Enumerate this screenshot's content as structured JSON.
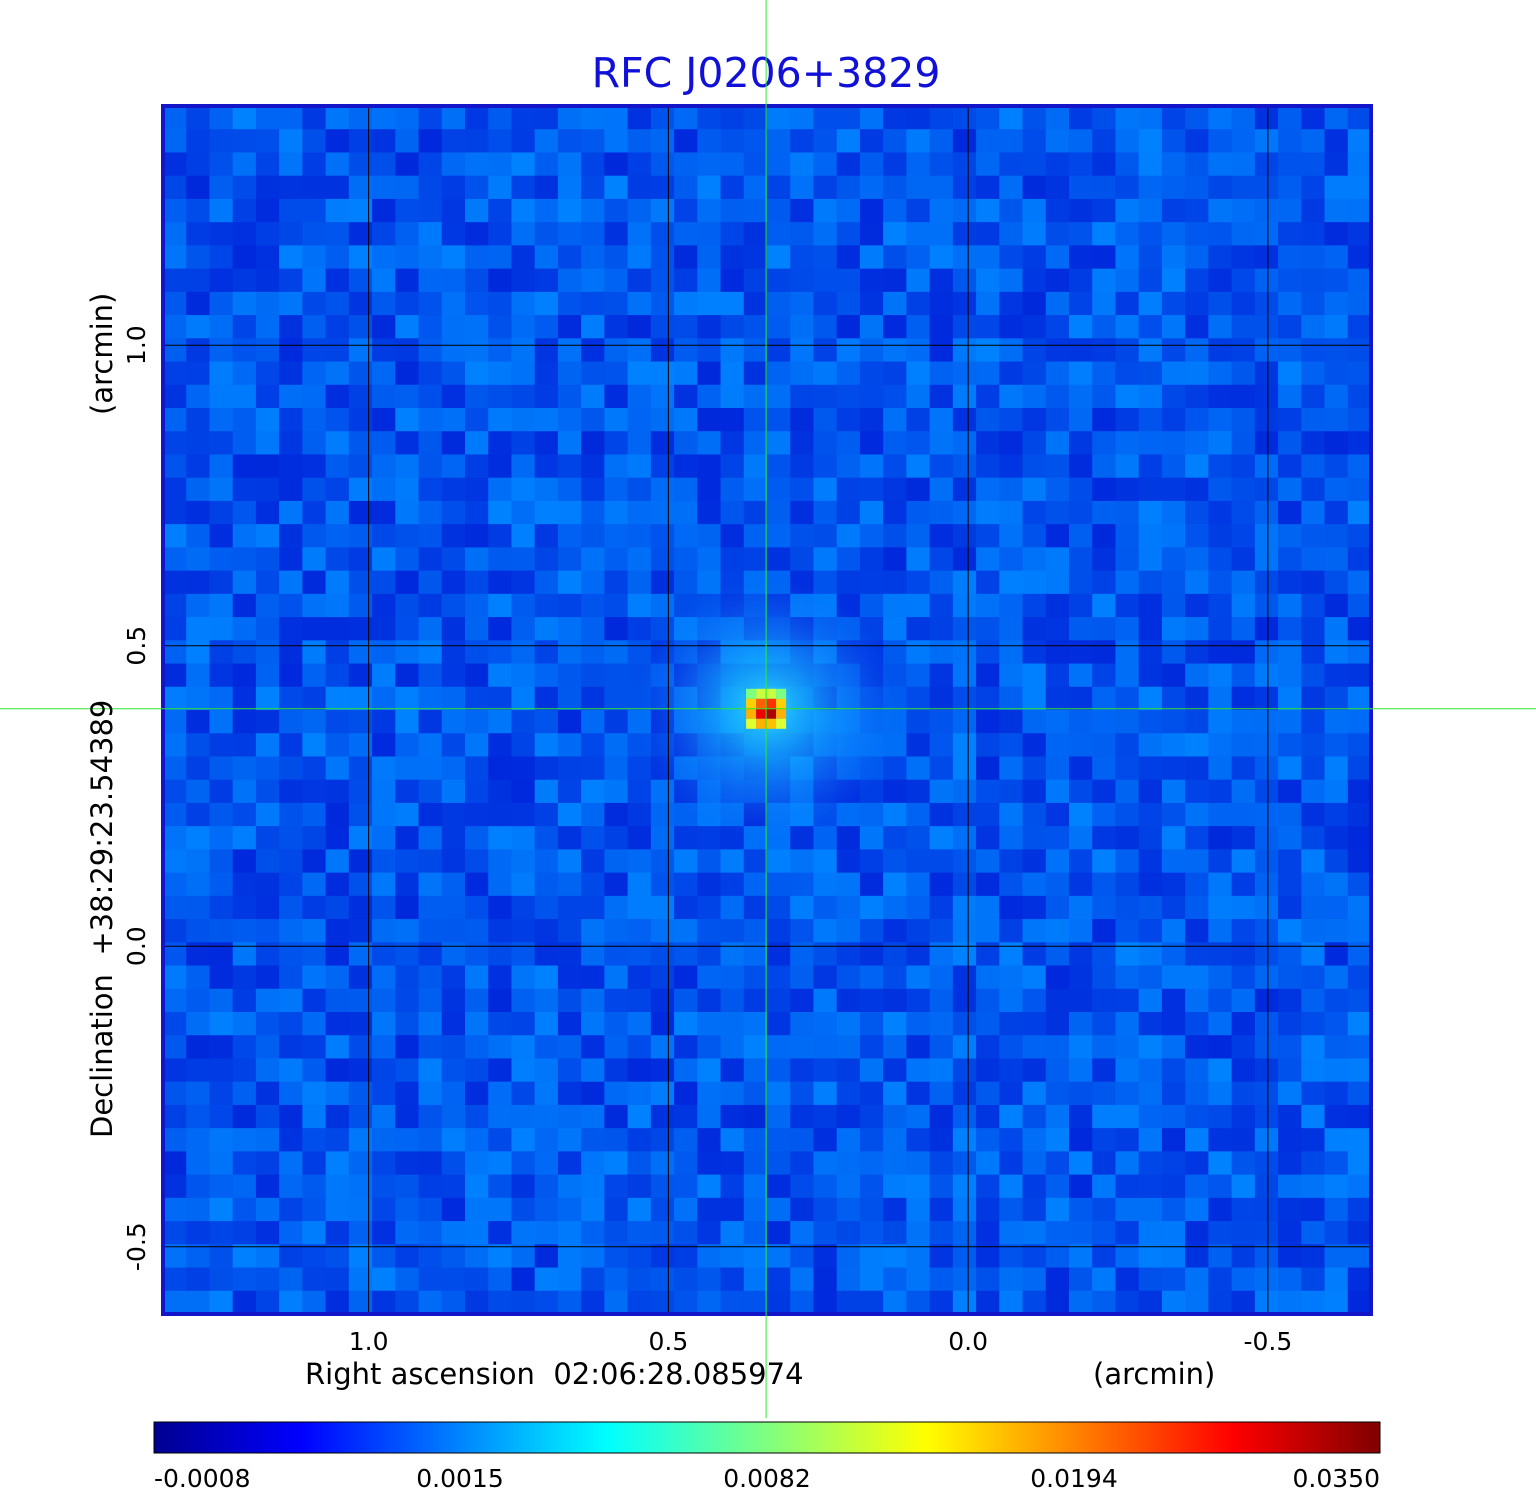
{
  "chart_data": {
    "type": "heatmap",
    "title": "RFC J0206+3829",
    "xlabel": "Right ascension  02:06:28.085974",
    "xunit": "(arcmin)",
    "ylabel": "Declination  +38:29:23.54389",
    "yunit": "(arcmin)",
    "x_ticks": [
      "1.0",
      "0.5",
      "0.0",
      "-0.5"
    ],
    "y_ticks": [
      "1.0",
      "0.5",
      "0.0",
      "-0.5"
    ],
    "x_tick_values": [
      1.0,
      0.5,
      0.0,
      -0.5
    ],
    "y_tick_values": [
      1.0,
      0.5,
      0.0,
      -0.5
    ],
    "xlim": [
      1.343,
      -0.672
    ],
    "ylim": [
      -0.612,
      1.398
    ],
    "grid": true,
    "crosshair": {
      "x": 0.337,
      "y": 0.395
    },
    "source_peak": {
      "x": 0.337,
      "y": 0.395,
      "value": 0.035
    },
    "colorbar": {
      "colormap": "jet",
      "orientation": "horizontal",
      "tick_labels": [
        "-0.0008",
        "0.0015",
        "0.0082",
        "0.0194",
        "0.0350"
      ],
      "range": [
        -0.0008,
        0.035
      ]
    }
  }
}
